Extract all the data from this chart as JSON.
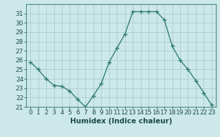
{
  "x": [
    0,
    1,
    2,
    3,
    4,
    5,
    6,
    7,
    8,
    9,
    10,
    11,
    12,
    13,
    14,
    15,
    16,
    17,
    18,
    19,
    20,
    21,
    22,
    23
  ],
  "y": [
    25.8,
    25.0,
    24.0,
    23.3,
    23.2,
    22.7,
    21.8,
    21.0,
    22.2,
    23.5,
    25.8,
    27.3,
    28.8,
    31.2,
    31.2,
    31.2,
    31.2,
    30.3,
    27.5,
    26.0,
    25.0,
    23.8,
    22.5,
    21.2
  ],
  "line_color": "#2e7d6e",
  "marker": "+",
  "marker_size": 4,
  "marker_lw": 1.0,
  "bg_color": "#cce8e8",
  "grid_color": "#aacccc",
  "xlabel": "Humidex (Indice chaleur)",
  "ylim": [
    21,
    32
  ],
  "yticks": [
    21,
    22,
    23,
    24,
    25,
    26,
    27,
    28,
    29,
    30,
    31
  ],
  "xlabel_fontsize": 7.5,
  "tick_fontsize": 6.5,
  "line_width": 1.0
}
